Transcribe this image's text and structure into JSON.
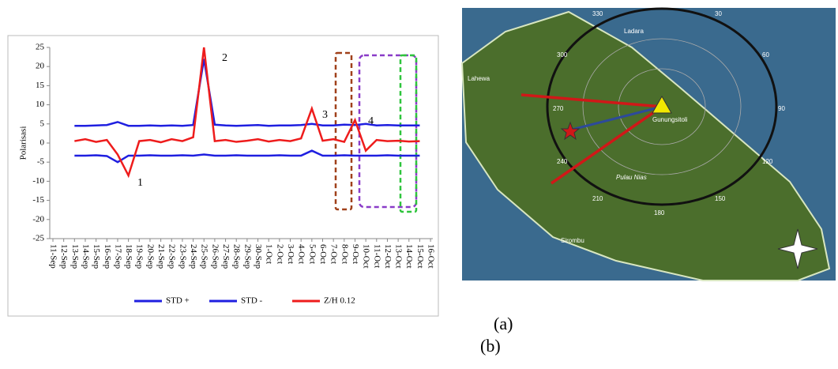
{
  "chart_data": {
    "type": "line",
    "y_label": "Polarisasi",
    "categories": [
      "11-Sep",
      "12-Sep",
      "13-Sep",
      "14-Sep",
      "15-Sep",
      "16-Sep",
      "17-Sep",
      "18-Sep",
      "19-Sep",
      "20-Sep",
      "21-Sep",
      "22-Sep",
      "23-Sep",
      "24-Sep",
      "25-Sep",
      "26-Sep",
      "27-Sep",
      "28-Sep",
      "29-Sep",
      "30-Sep",
      "1-Oct",
      "2-Oct",
      "3-Oct",
      "4-Oct",
      "5-Oct",
      "6-Oct",
      "7-Oct",
      "8-Oct",
      "9-Oct",
      "10-Oct",
      "11-Oct",
      "12-Oct",
      "13-Oct",
      "14-Oct",
      "15-Oct",
      "16-Oct"
    ],
    "series": [
      {
        "name": "STD +",
        "color": "#1f1fe0",
        "values": [
          null,
          null,
          4.5,
          4.5,
          4.6,
          4.7,
          5.5,
          4.5,
          4.5,
          4.6,
          4.5,
          4.6,
          4.5,
          4.7,
          22,
          4.8,
          4.6,
          4.5,
          4.6,
          4.7,
          4.5,
          4.6,
          4.6,
          4.7,
          5,
          4.6,
          4.6,
          4.8,
          4.7,
          5,
          4.6,
          4.7,
          4.6,
          4.6,
          4.6,
          null
        ]
      },
      {
        "name": "STD -",
        "color": "#1f1fe0",
        "values": [
          null,
          null,
          -3.3,
          -3.3,
          -3.2,
          -3.4,
          -5,
          -3.3,
          -3.3,
          -3.2,
          -3.3,
          -3.3,
          -3.2,
          -3.3,
          -3,
          -3.3,
          -3.3,
          -3.2,
          -3.3,
          -3.3,
          -3.3,
          -3.2,
          -3.3,
          -3.3,
          -2,
          -3.3,
          -3.3,
          -3.2,
          -3.3,
          -3.3,
          -3.3,
          -3.2,
          -3.3,
          -3.3,
          -3.3,
          null
        ]
      },
      {
        "name": "Z/H 0.12",
        "color": "#ee1c1c",
        "values": [
          null,
          null,
          0.5,
          1,
          0.3,
          0.8,
          -3,
          -8.5,
          0.5,
          0.8,
          0.2,
          1,
          0.5,
          1.5,
          25,
          0.5,
          0.8,
          0.3,
          0.6,
          1,
          0.4,
          0.8,
          0.5,
          1.2,
          9,
          0.6,
          1,
          0.3,
          6,
          -2,
          0.8,
          0.5,
          0.6,
          0.4,
          0.5,
          null
        ]
      }
    ],
    "ylim": [
      -25,
      25
    ],
    "yticks": [
      -25,
      -20,
      -15,
      -10,
      -5,
      0,
      5,
      10,
      15,
      20,
      25
    ],
    "annotations": [
      "1",
      "2",
      "3",
      "4"
    ]
  },
  "map": {
    "labels": [
      "330",
      "30",
      "60",
      "90",
      "120",
      "150",
      "180",
      "210",
      "240",
      "270",
      "300",
      "Lahewa",
      "Ladara",
      "Gunungsitoli",
      "Pulau Nias",
      "Sirombu"
    ]
  },
  "captions": [
    "(a)",
    "(b)"
  ]
}
